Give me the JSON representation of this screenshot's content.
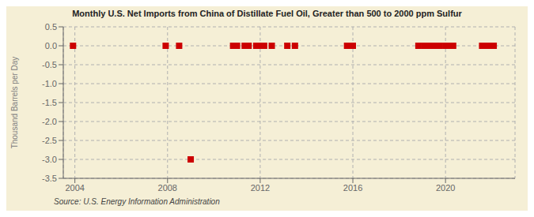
{
  "chart_data": {
    "type": "scatter",
    "title": "Monthly U.S. Net Imports from China of Distillate Fuel Oil, Greater than 500 to 2000 ppm Sulfur",
    "y_label": "Thousand Barrels per Day",
    "annotations": [
      "Source: U.S. Energy Information Administration"
    ],
    "x": [
      2003.92,
      2007.92,
      2008.5,
      2009.0,
      2010.83,
      2011.0,
      2011.33,
      2011.5,
      2011.83,
      2012.0,
      2012.17,
      2012.5,
      2013.17,
      2013.5,
      2015.75,
      2016.0,
      2018.83,
      2019.08,
      2019.25,
      2019.5,
      2019.75,
      2020.0,
      2020.17,
      2020.33,
      2021.58,
      2021.75,
      2021.92,
      2022.08
    ],
    "values": [
      0.0,
      0.0,
      0.0,
      -3.0,
      0.0,
      0.0,
      0.0,
      0.0,
      0.0,
      0.0,
      0.0,
      0.0,
      0.0,
      0.0,
      0.0,
      0.0,
      0.0,
      0.0,
      0.0,
      0.0,
      0.0,
      0.0,
      0.0,
      0.0,
      0.0,
      0.0,
      0.0,
      0.0
    ],
    "color": "#cc0000",
    "marker": "square",
    "xlim": [
      2003.5,
      2023.0
    ],
    "xticks": [
      2004,
      2008,
      2012,
      2016,
      2020
    ],
    "ylim": [
      -3.5,
      0.5
    ],
    "yticks": [
      0.5,
      {
        "value": 0.0,
        "label": "0.0"
      },
      -0.5,
      {
        "value": -1.0,
        "label": "-1.0"
      },
      -1.5,
      {
        "value": -2.0,
        "label": "-2.0"
      },
      -2.5,
      {
        "value": -3.0,
        "label": "-3.0"
      },
      -3.5
    ],
    "grid": true
  }
}
